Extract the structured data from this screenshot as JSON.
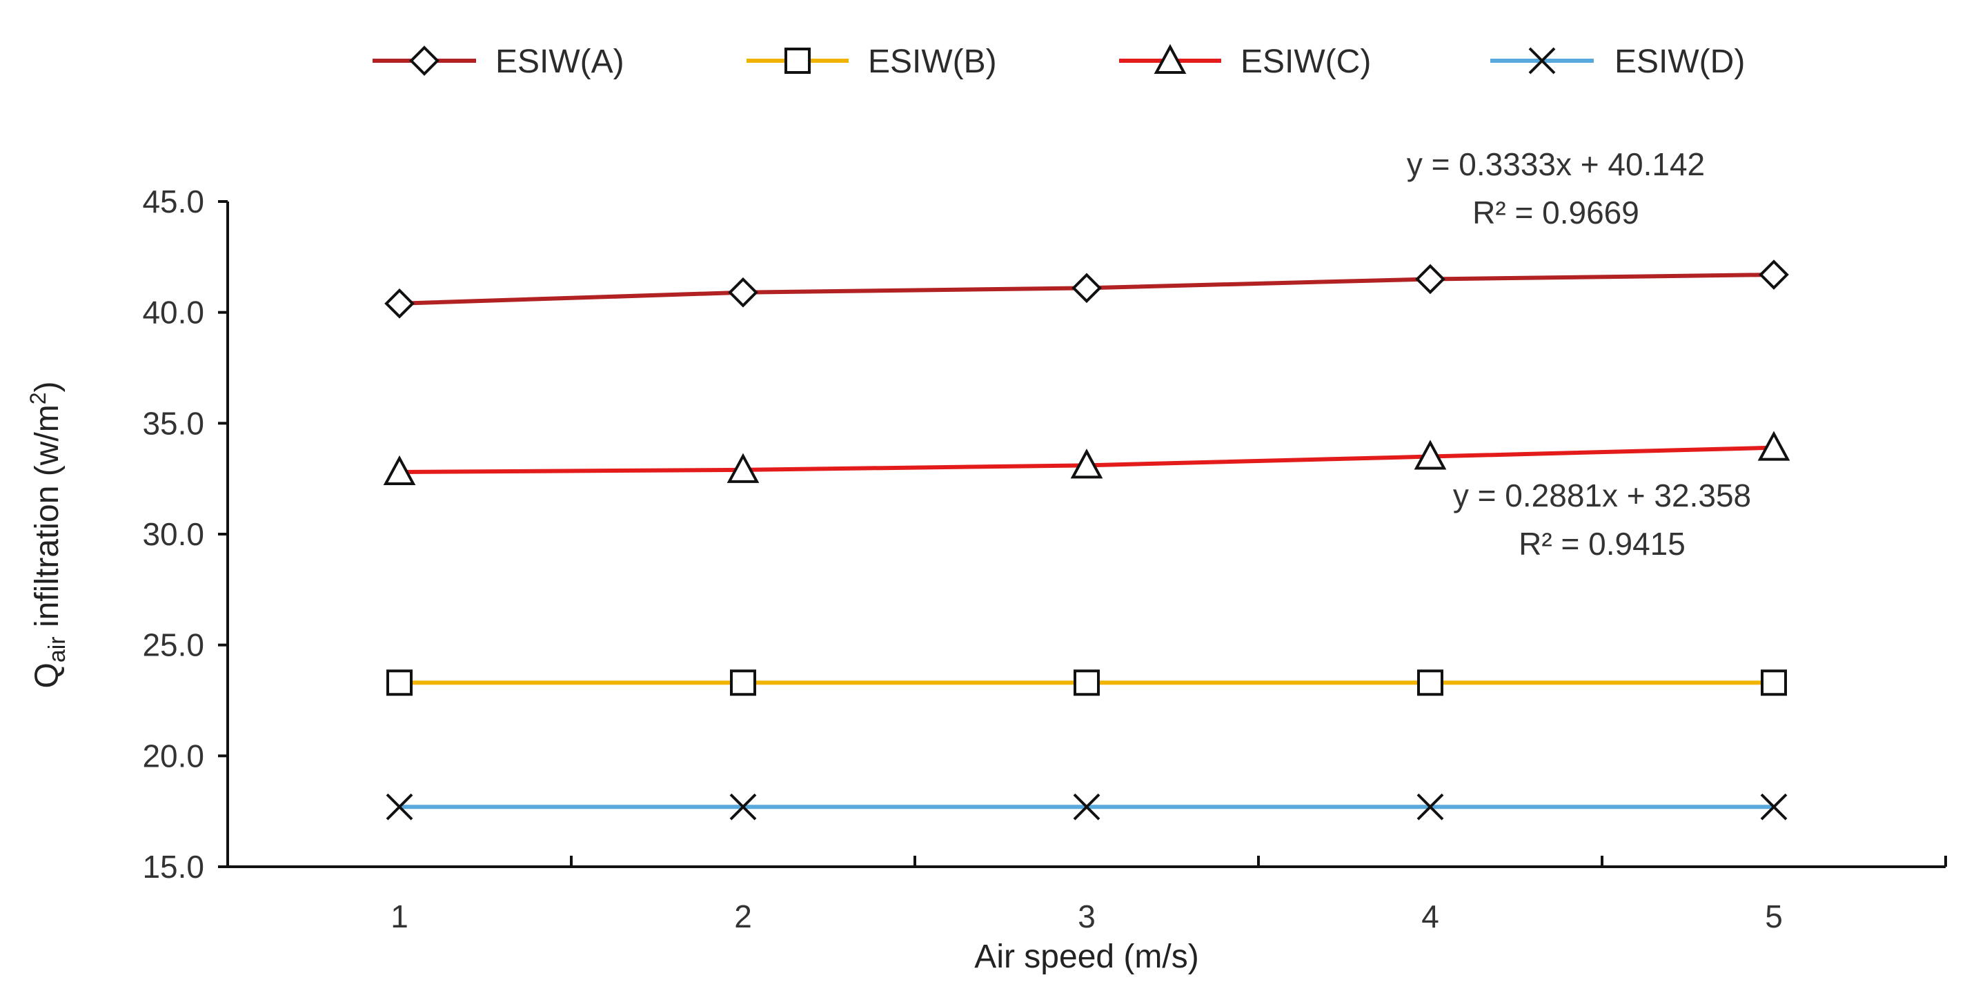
{
  "chart_data": {
    "type": "line",
    "title": "",
    "x": [
      1,
      2,
      3,
      4,
      5
    ],
    "xlabel": "Air speed (m/s)",
    "ylabel": {
      "main": "Q",
      "subscript": "air",
      "rest": " infiltration (w/m",
      "superscript": "2",
      "close": ")"
    },
    "xlim": [
      0.5,
      5.5
    ],
    "ylim": [
      15,
      45
    ],
    "xticks": [
      1,
      2,
      3,
      4,
      5
    ],
    "yticks": [
      "15.0",
      "20.0",
      "25.0",
      "30.0",
      "35.0",
      "40.0",
      "45.0"
    ],
    "grid": false,
    "legend_position": "top",
    "series": [
      {
        "name": "ESIW(A)",
        "color": "#b22222",
        "marker": "diamond",
        "values": [
          40.4,
          40.9,
          41.1,
          41.5,
          41.7
        ]
      },
      {
        "name": "ESIW(B)",
        "color": "#f0b400",
        "marker": "square",
        "values": [
          23.3,
          23.3,
          23.3,
          23.3,
          23.3
        ]
      },
      {
        "name": "ESIW(C)",
        "color": "#e31b1b",
        "marker": "triangle",
        "values": [
          32.8,
          32.9,
          33.1,
          33.5,
          33.9
        ]
      },
      {
        "name": "ESIW(D)",
        "color": "#5aa9dd",
        "marker": "x",
        "values": [
          17.7,
          17.7,
          17.7,
          17.7,
          17.7
        ]
      }
    ],
    "annotations": [
      {
        "series": "ESIW(A)",
        "equation": "y = 0.3333x + 40.142",
        "r2": "R² = 0.9669"
      },
      {
        "series": "ESIW(C)",
        "equation": "y = 0.2881x + 32.358",
        "r2": "R² = 0.9415"
      }
    ]
  }
}
